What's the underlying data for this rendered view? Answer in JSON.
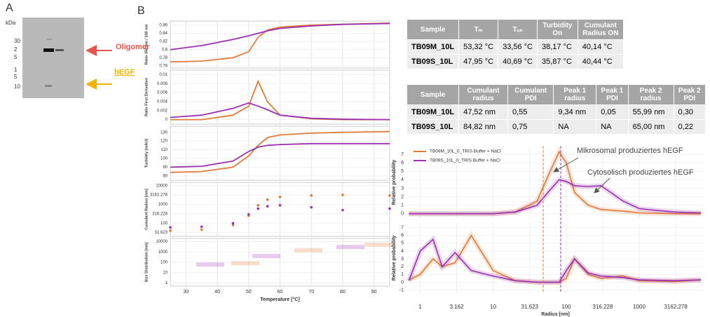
{
  "panel_a": {
    "label": "A",
    "unit": "kDa",
    "markers": [
      "30",
      "2",
      "5",
      "1",
      "5",
      "10"
    ],
    "annotations": [
      "Oligomer",
      "hEGF"
    ]
  },
  "panel_b": {
    "label": "B"
  },
  "nanodsf": {
    "type": "line",
    "xlabel": "Temperature [°C]",
    "xlim": [
      25,
      95
    ],
    "xticks": [
      30,
      40,
      50,
      60,
      70,
      80,
      90
    ],
    "x": [
      25,
      35,
      45,
      50,
      53,
      56,
      60,
      70,
      80,
      95
    ],
    "panels": [
      {
        "ylabel": "Ratio 350 nm / 330 nm",
        "ylim": [
          0.755,
          0.87
        ],
        "yticks": [
          0.76,
          0.78,
          0.8,
          0.82,
          0.84,
          0.86
        ],
        "style": "line",
        "series": [
          {
            "color": "#e07b39",
            "values": [
              0.77,
              0.772,
              0.78,
              0.795,
              0.83,
              0.848,
              0.855,
              0.86,
              0.862,
              0.865
            ]
          },
          {
            "color": "#9b30b0",
            "values": [
              0.8,
              0.81,
              0.825,
              0.834,
              0.84,
              0.846,
              0.852,
              0.858,
              0.862,
              0.864
            ]
          }
        ]
      },
      {
        "ylabel": "Ratio First Derivative",
        "ylim": [
          -0.001,
          0.011
        ],
        "yticks": [
          0,
          0.002,
          0.004,
          0.006,
          0.008,
          0.01
        ],
        "style": "line",
        "series": [
          {
            "color": "#e07b39",
            "values": [
              0,
              0,
              0.001,
              0.003,
              0.0085,
              0.004,
              0.001,
              0.0002,
              0,
              0
            ]
          },
          {
            "color": "#9b30b0",
            "values": [
              0.0005,
              0.001,
              0.0025,
              0.0037,
              0.003,
              0.0022,
              0.001,
              0.0003,
              0.0001,
              0
            ]
          }
        ]
      },
      {
        "ylabel": "Turbidity [mAU]",
        "ylim": [
          75,
          137
        ],
        "yticks": [
          80,
          90,
          100,
          110,
          120,
          130
        ],
        "style": "line",
        "series": [
          {
            "color": "#e07b39",
            "values": [
              84,
              85,
              90,
              103,
              115,
              124,
              127,
              129,
              130,
              131
            ]
          },
          {
            "color": "#9b30b0",
            "values": [
              90,
              91,
              97,
              108,
              113,
              115,
              116,
              117,
              117,
              117
            ]
          }
        ]
      },
      {
        "ylabel": "Cumulant Radius [nm]",
        "yscale": "log",
        "ylim": [
          20,
          15000
        ],
        "yticks": [
          31.623,
          100,
          316.228,
          1000,
          3162.278,
          10000
        ],
        "style": "dots",
        "series": [
          {
            "color": "#e07b39",
            "values": [
              40,
              45,
              80,
              250,
              900,
              1800,
              2500,
              3000,
              3200,
              3000
            ]
          },
          {
            "color": "#9b30b0",
            "values": [
              60,
              65,
              100,
              300,
              600,
              800,
              900,
              700,
              500,
              600
            ]
          }
        ]
      },
      {
        "ylabel": "Size Distribution [nm]",
        "yscale": "log",
        "ylim": [
          0.5,
          20000
        ],
        "yticks": [
          1,
          10,
          100,
          1000,
          10000
        ],
        "style": "none",
        "series": []
      }
    ]
  },
  "table_1": {
    "header": [
      "Sample",
      "Tₘ",
      "Tₒₙ",
      "Turbidity On",
      "Cumulant Radius ON"
    ],
    "rows": [
      [
        "TB09M_10L",
        "53,32 °C",
        "33,56 °C",
        "38,17 °C",
        "40,14 °C"
      ],
      [
        "TB09S_10L",
        "47,95 °C",
        "40,69 °C",
        "35,87 °C",
        "40,44 °C"
      ]
    ]
  },
  "table_2": {
    "header": [
      "Sample",
      "Cumulant radius",
      "Cumulant PDI",
      "Peak 1 radius",
      "Peak 1 PDI",
      "Peak 2 radius",
      "Peak 2 PDI"
    ],
    "rows": [
      [
        "TB09M_10L",
        "47,52 nm",
        "0,55",
        "9,34 nm",
        "0,05",
        "55,99 nm",
        "0,30"
      ],
      [
        "TB09S_10L",
        "84,82 nm",
        "0,75",
        "NA",
        "NA",
        "65,00 nm",
        "0,22"
      ]
    ]
  },
  "dls": {
    "type": "line",
    "xlabel": "Radius [nm]",
    "xscale": "log",
    "xlim": [
      0.65,
      7800
    ],
    "xticks": [
      1,
      3.162,
      10,
      31.623,
      100,
      316.228,
      1000,
      3162.278
    ],
    "x": [
      0.7,
      1,
      1.5,
      2,
      3,
      5,
      10,
      20,
      40,
      60,
      80,
      100,
      130,
      200,
      300,
      600,
      1000,
      3000,
      7000
    ],
    "legend": "upper left",
    "annotations": [
      "Mikrosomal produziertes hEGF",
      "Cytosolisch produziertes hEGF"
    ],
    "panels": [
      {
        "ylabel": "Relative probability",
        "ylim": [
          -0.6,
          8
        ],
        "yticks": [
          0,
          1,
          2,
          3,
          4,
          5,
          6,
          7
        ],
        "series": [
          {
            "name": "TB09M_10L_0_TRIS Buffer + NaCl",
            "color": "#e07b39",
            "values": [
              0,
              0,
              0,
              0,
              0,
              0,
              0,
              0.2,
              1.5,
              5,
              7.3,
              6,
              2.5,
              1,
              0.5,
              0.3,
              0.1,
              0,
              0
            ]
          },
          {
            "name": "TB09S_10L_0_TRIS Buffer + NaCl",
            "color": "#9b30b0",
            "values": [
              0,
              0,
              0,
              0,
              0,
              0,
              0,
              0.2,
              1,
              2.8,
              4,
              3.8,
              3.3,
              3.2,
              3.3,
              1.5,
              0.6,
              0.2,
              0.1
            ]
          }
        ]
      },
      {
        "ylabel": "Relative probability",
        "ylim": [
          -1.4,
          7.6
        ],
        "yticks": [
          -1,
          0,
          1,
          2,
          3,
          4,
          5,
          6,
          7
        ],
        "series": [
          {
            "color": "#e07b39",
            "values": [
              0.3,
              1,
              3,
              2,
              2.5,
              6,
              1.5,
              0.2,
              0,
              0,
              0,
              0.5,
              3,
              1,
              0.5,
              0.8,
              0.2,
              0.1,
              0.3
            ]
          },
          {
            "color": "#9b30b0",
            "values": [
              0.2,
              4,
              5.5,
              2,
              3.8,
              1.5,
              0.8,
              0.2,
              0,
              0,
              0,
              1.5,
              3,
              1.2,
              0.8,
              0.6,
              0.3,
              0.2,
              0.3
            ]
          }
        ]
      }
    ]
  }
}
